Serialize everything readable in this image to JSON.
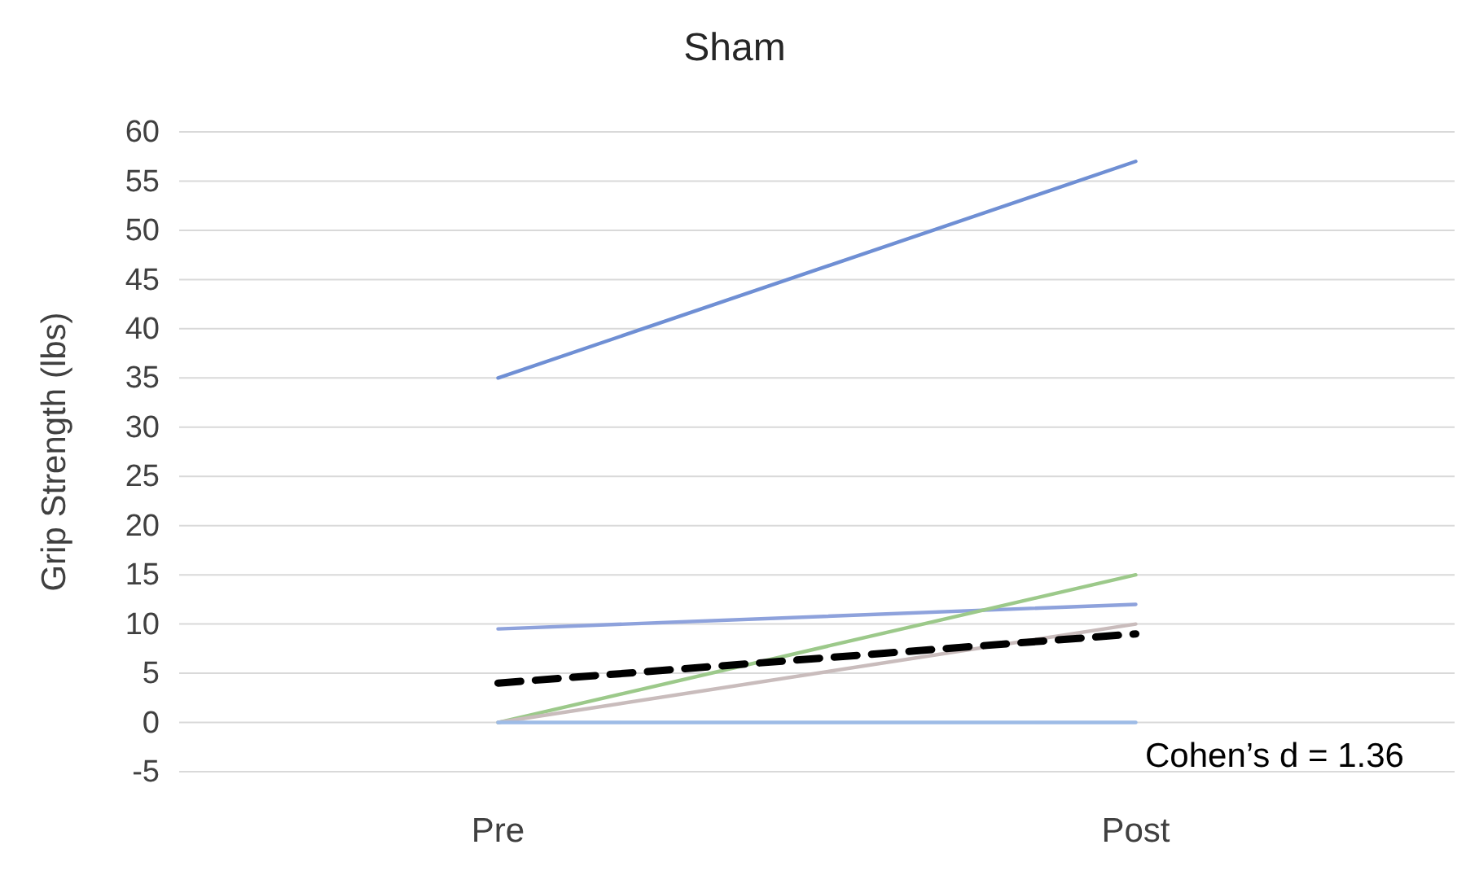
{
  "chart_data": {
    "type": "line",
    "title": "Sham",
    "ylabel": "Grip Strength (lbs)",
    "categories": [
      "Pre",
      "Post"
    ],
    "series": [
      {
        "color": "#6f8fd4",
        "values": [
          35,
          57
        ]
      },
      {
        "color": "#8ea2dc",
        "values": [
          9.5,
          12
        ]
      },
      {
        "color": "#9cc98a",
        "values": [
          0,
          15
        ]
      },
      {
        "color": "#c9bcbc",
        "values": [
          0,
          10
        ]
      },
      {
        "color": "#9dbbe6",
        "values": [
          0,
          0
        ]
      },
      {
        "color": "#000000",
        "values": [
          4,
          9
        ],
        "line_style": "dashed"
      }
    ],
    "ylim": [
      -5,
      60
    ],
    "yticks": [
      -5,
      0,
      5,
      10,
      15,
      20,
      25,
      30,
      35,
      40,
      45,
      50,
      55,
      60
    ],
    "grid": "y",
    "marker": "none",
    "annotations": [
      "Cohen’s d = 1.36"
    ]
  }
}
